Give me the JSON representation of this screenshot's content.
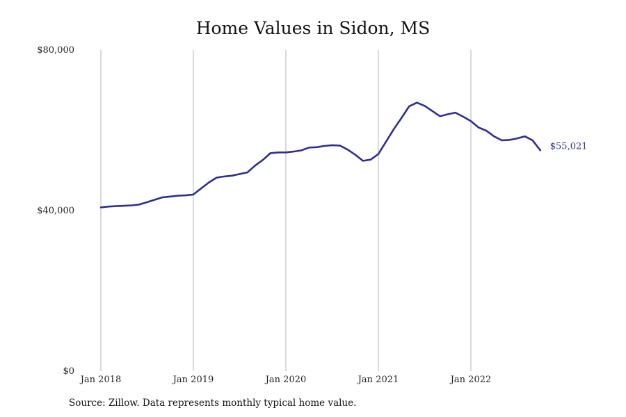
{
  "chart_data": {
    "type": "line",
    "title": "Home Values in Sidon, MS",
    "xlabel": "",
    "ylabel": "",
    "ylim": [
      0,
      80000
    ],
    "y_ticks": [
      0,
      40000,
      80000
    ],
    "y_tick_labels": [
      "$0",
      "$40,000",
      "$80,000"
    ],
    "x_range": [
      "2018-01",
      "2022-10"
    ],
    "x_ticks": [
      "2018-01",
      "2019-01",
      "2020-01",
      "2021-01",
      "2022-01"
    ],
    "x_tick_labels": [
      "Jan 2018",
      "Jan 2019",
      "Jan 2020",
      "Jan 2021",
      "Jan 2022"
    ],
    "grid": "vertical",
    "line_color": "#2e2e8f",
    "end_label": "$55,021",
    "series": [
      {
        "x": [
          "2018-01",
          "2018-02",
          "2018-03",
          "2018-04",
          "2018-05",
          "2018-06",
          "2018-07",
          "2018-08",
          "2018-09",
          "2018-10",
          "2018-11",
          "2018-12",
          "2019-01",
          "2019-02",
          "2019-03",
          "2019-04",
          "2019-05",
          "2019-06",
          "2019-07",
          "2019-08",
          "2019-09",
          "2019-10",
          "2019-11",
          "2019-12",
          "2020-01",
          "2020-02",
          "2020-03",
          "2020-04",
          "2020-05",
          "2020-06",
          "2020-07",
          "2020-08",
          "2020-09",
          "2020-10",
          "2020-11",
          "2020-12",
          "2021-01",
          "2021-02",
          "2021-03",
          "2021-04",
          "2021-05",
          "2021-06",
          "2021-07",
          "2021-08",
          "2021-09",
          "2021-10",
          "2021-11",
          "2021-12",
          "2022-01",
          "2022-02",
          "2022-03",
          "2022-04",
          "2022-05",
          "2022-06",
          "2022-07",
          "2022-08",
          "2022-09",
          "2022-10"
        ],
        "values": [
          40800,
          41000,
          41100,
          41200,
          41300,
          41500,
          42100,
          42700,
          43300,
          43500,
          43700,
          43800,
          44000,
          45500,
          47000,
          48200,
          48500,
          48700,
          49100,
          49500,
          51200,
          52600,
          54300,
          54500,
          54500,
          54700,
          55000,
          55700,
          55800,
          56100,
          56300,
          56200,
          55200,
          53900,
          52400,
          52700,
          54100,
          57200,
          60300,
          63100,
          66000,
          66900,
          66100,
          64800,
          63500,
          64000,
          64400,
          63400,
          62300,
          60700,
          59900,
          58500,
          57500,
          57600,
          58000,
          58500,
          57500,
          55021
        ]
      }
    ]
  },
  "source_text": "Source: Zillow. Data represents monthly typical home value."
}
